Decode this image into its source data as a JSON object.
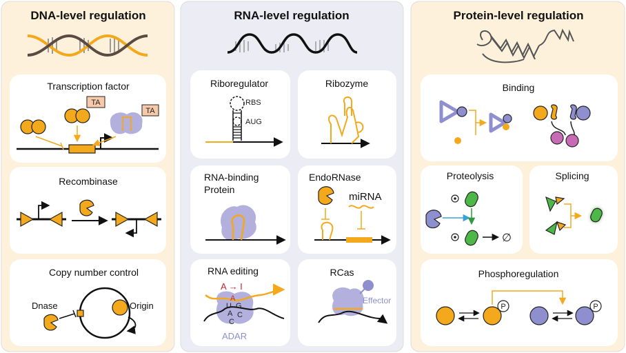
{
  "colors": {
    "orange": "#f4a81b",
    "purple": "#8f8fcf",
    "purple_light": "#b3b0de",
    "magenta": "#c76bb5",
    "green": "#4db848",
    "red": "#c1272d",
    "ta_fill": "#f6c9aa",
    "panel_dna": "#fdf1dc",
    "panel_rna": "#ececf5",
    "panel_protein": "#fdf1dc"
  },
  "panels": {
    "dna": {
      "title": "DNA-level regulation",
      "cards": {
        "transcription_factor": {
          "title": "Transcription factor",
          "ta_label_1": "TA",
          "ta_label_2": "TA"
        },
        "recombinase": {
          "title": "Recombinase"
        },
        "copy_number": {
          "title": "Copy number control",
          "dnase_label": "Dnase",
          "origin_label": "Origin"
        }
      }
    },
    "rna": {
      "title": "RNA-level regulation",
      "cards": {
        "riboregulator": {
          "title": "Riboregulator",
          "rbs_label": "RBS",
          "aug_label": "AUG"
        },
        "ribozyme": {
          "title": "Ribozyme"
        },
        "rna_binding_protein": {
          "title_line1": "RNA-binding",
          "title_line2": "Protein"
        },
        "endornase": {
          "title": "EndoRNase",
          "mirna_label": "miRNA"
        },
        "rna_editing": {
          "title": "RNA editing",
          "edit_label": "A → I",
          "base_a_top": "A",
          "base_u": "U",
          "base_g": "G",
          "base_a": "A",
          "base_c1": "C",
          "base_c2": "C",
          "adar_label": "ADAR"
        },
        "rcas": {
          "title": "RCas",
          "effector_label": "Effector"
        }
      }
    },
    "protein": {
      "title": "Protein-level regulation",
      "cards": {
        "binding": {
          "title": "Binding"
        },
        "proteolysis": {
          "title": "Proteolysis",
          "empty_set": "∅"
        },
        "splicing": {
          "title": "Splicing"
        },
        "phosphoregulation": {
          "title": "Phosphoregulation",
          "p_label_1": "P",
          "p_label_2": "P"
        }
      }
    }
  }
}
